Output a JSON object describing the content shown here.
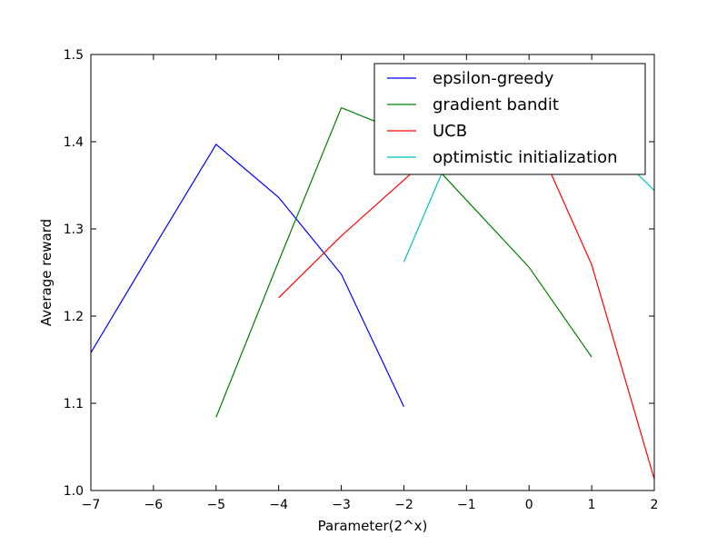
{
  "chart_data": {
    "type": "line",
    "title": "",
    "xlabel": "Parameter(2^x)",
    "ylabel": "Average reward",
    "xlim": [
      -7,
      2
    ],
    "ylim": [
      1.0,
      1.5
    ],
    "xticks": [
      -7,
      -6,
      -5,
      -4,
      -3,
      -2,
      -1,
      0,
      1,
      2
    ],
    "xtick_labels": [
      "−7",
      "−6",
      "−5",
      "−4",
      "−3",
      "−2",
      "−1",
      "0",
      "1",
      "2"
    ],
    "yticks": [
      1.0,
      1.1,
      1.2,
      1.3,
      1.4,
      1.5
    ],
    "ytick_labels": [
      "1.0",
      "1.1",
      "1.2",
      "1.3",
      "1.4",
      "1.5"
    ],
    "grid": false,
    "legend_position": "top-right",
    "series": [
      {
        "name": "epsilon-greedy",
        "color": "#0000ff",
        "x": [
          -7,
          -6,
          -5,
          -4,
          -3,
          -2
        ],
        "y": [
          1.158,
          1.278,
          1.397,
          1.336,
          1.248,
          1.096
        ]
      },
      {
        "name": "gradient bandit",
        "color": "#008000",
        "x": [
          -5,
          -4,
          -3,
          -2,
          -1,
          0,
          1
        ],
        "y": [
          1.084,
          1.263,
          1.439,
          1.41,
          1.333,
          1.256,
          1.153
        ]
      },
      {
        "name": "UCB",
        "color": "#ff0000",
        "x": [
          -4,
          -3,
          -2,
          -1,
          0,
          1,
          2
        ],
        "y": [
          1.221,
          1.292,
          1.356,
          1.42,
          1.42,
          1.259,
          1.013
        ]
      },
      {
        "name": "optimistic initialization",
        "color": "#00bfbf",
        "x": [
          -2,
          -1,
          0,
          1,
          2
        ],
        "y": [
          1.262,
          1.43,
          1.46,
          1.415,
          1.344
        ]
      }
    ]
  }
}
